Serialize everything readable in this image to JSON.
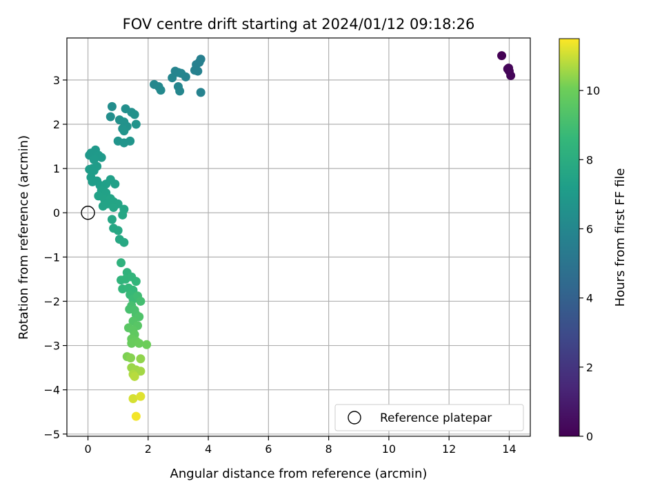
{
  "chart_data": {
    "type": "scatter",
    "title": "FOV centre drift starting at 2024/01/12 09:18:26",
    "xlabel": "Angular distance from reference (arcmin)",
    "ylabel": "Rotation from reference (arcmin)",
    "xlim": [
      -0.7,
      14.7
    ],
    "ylim": [
      -5.05,
      3.95
    ],
    "xticks": [
      0,
      2,
      4,
      6,
      8,
      10,
      12,
      14
    ],
    "yticks": [
      -5,
      -4,
      -3,
      -2,
      -1,
      0,
      1,
      2,
      3
    ],
    "grid": true,
    "legend": {
      "position": "lower right",
      "entries": [
        "Reference platepar"
      ]
    },
    "reference_point": {
      "x": 0,
      "y": 0
    },
    "colorbar": {
      "label": "Hours from first FF file",
      "colormap": "viridis",
      "range": [
        0,
        11.5
      ],
      "ticks": [
        0,
        2,
        4,
        6,
        8,
        10
      ]
    },
    "series": [
      {
        "points": [
          {
            "x": 13.75,
            "y": 3.55,
            "c": 0.0
          },
          {
            "x": 13.95,
            "y": 3.25,
            "c": 0.05
          },
          {
            "x": 14.0,
            "y": 3.2,
            "c": 0.1
          },
          {
            "x": 14.05,
            "y": 3.1,
            "c": 0.15
          },
          {
            "x": 13.98,
            "y": 3.27,
            "c": 0.2
          },
          {
            "x": 3.75,
            "y": 3.47,
            "c": 5.6
          },
          {
            "x": 3.7,
            "y": 3.4,
            "c": 5.62
          },
          {
            "x": 3.6,
            "y": 3.35,
            "c": 5.65
          },
          {
            "x": 3.65,
            "y": 3.2,
            "c": 5.7
          },
          {
            "x": 3.55,
            "y": 3.22,
            "c": 5.72
          },
          {
            "x": 3.75,
            "y": 2.72,
            "c": 5.75
          },
          {
            "x": 3.25,
            "y": 3.07,
            "c": 5.8
          },
          {
            "x": 3.0,
            "y": 3.17,
            "c": 5.82
          },
          {
            "x": 2.9,
            "y": 3.2,
            "c": 5.85
          },
          {
            "x": 3.1,
            "y": 3.15,
            "c": 5.88
          },
          {
            "x": 2.8,
            "y": 3.05,
            "c": 5.9
          },
          {
            "x": 3.0,
            "y": 2.85,
            "c": 5.92
          },
          {
            "x": 3.05,
            "y": 2.75,
            "c": 5.95
          },
          {
            "x": 2.2,
            "y": 2.9,
            "c": 6.0
          },
          {
            "x": 2.35,
            "y": 2.85,
            "c": 6.05
          },
          {
            "x": 2.42,
            "y": 2.77,
            "c": 6.1
          },
          {
            "x": 0.8,
            "y": 2.4,
            "c": 6.3
          },
          {
            "x": 0.75,
            "y": 2.17,
            "c": 6.35
          },
          {
            "x": 1.25,
            "y": 2.35,
            "c": 6.4
          },
          {
            "x": 1.45,
            "y": 2.27,
            "c": 6.45
          },
          {
            "x": 1.55,
            "y": 2.22,
            "c": 6.5
          },
          {
            "x": 1.05,
            "y": 2.1,
            "c": 6.52
          },
          {
            "x": 1.2,
            "y": 2.05,
            "c": 6.55
          },
          {
            "x": 1.3,
            "y": 1.95,
            "c": 6.58
          },
          {
            "x": 1.15,
            "y": 1.9,
            "c": 6.6
          },
          {
            "x": 1.6,
            "y": 2.0,
            "c": 6.62
          },
          {
            "x": 1.2,
            "y": 1.85,
            "c": 6.65
          },
          {
            "x": 1.0,
            "y": 1.62,
            "c": 6.68
          },
          {
            "x": 1.2,
            "y": 1.58,
            "c": 6.7
          },
          {
            "x": 1.4,
            "y": 1.62,
            "c": 6.72
          },
          {
            "x": 0.05,
            "y": 1.3,
            "c": 6.9
          },
          {
            "x": 0.1,
            "y": 1.35,
            "c": 6.92
          },
          {
            "x": 0.25,
            "y": 1.42,
            "c": 6.95
          },
          {
            "x": 0.35,
            "y": 1.3,
            "c": 6.98
          },
          {
            "x": 0.45,
            "y": 1.25,
            "c": 7.0
          },
          {
            "x": 0.2,
            "y": 1.2,
            "c": 7.02
          },
          {
            "x": 0.15,
            "y": 1.0,
            "c": 7.05
          },
          {
            "x": 0.3,
            "y": 1.05,
            "c": 7.08
          },
          {
            "x": 0.05,
            "y": 0.98,
            "c": 7.1
          },
          {
            "x": 0.2,
            "y": 0.95,
            "c": 7.12
          },
          {
            "x": 0.1,
            "y": 0.8,
            "c": 7.15
          },
          {
            "x": 0.15,
            "y": 0.7,
            "c": 7.18
          },
          {
            "x": 0.3,
            "y": 0.72,
            "c": 7.2
          },
          {
            "x": 0.4,
            "y": 0.62,
            "c": 7.22
          },
          {
            "x": 0.5,
            "y": 0.55,
            "c": 7.25
          },
          {
            "x": 0.6,
            "y": 0.65,
            "c": 7.28
          },
          {
            "x": 0.75,
            "y": 0.75,
            "c": 7.3
          },
          {
            "x": 0.9,
            "y": 0.65,
            "c": 7.32
          },
          {
            "x": 0.45,
            "y": 0.5,
            "c": 7.35
          },
          {
            "x": 0.6,
            "y": 0.45,
            "c": 7.38
          },
          {
            "x": 0.35,
            "y": 0.38,
            "c": 7.4
          },
          {
            "x": 0.55,
            "y": 0.3,
            "c": 7.42
          },
          {
            "x": 0.75,
            "y": 0.32,
            "c": 7.45
          },
          {
            "x": 0.65,
            "y": 0.2,
            "c": 7.48
          },
          {
            "x": 0.5,
            "y": 0.15,
            "c": 7.5
          },
          {
            "x": 0.85,
            "y": 0.25,
            "c": 7.52
          },
          {
            "x": 1.0,
            "y": 0.2,
            "c": 7.55
          },
          {
            "x": 0.85,
            "y": 0.12,
            "c": 7.58
          },
          {
            "x": 1.2,
            "y": 0.08,
            "c": 7.6
          },
          {
            "x": 1.15,
            "y": -0.05,
            "c": 7.62
          },
          {
            "x": 0.8,
            "y": -0.15,
            "c": 7.65
          },
          {
            "x": 0.85,
            "y": -0.35,
            "c": 7.68
          },
          {
            "x": 1.0,
            "y": -0.4,
            "c": 7.7
          },
          {
            "x": 1.05,
            "y": -0.6,
            "c": 7.72
          },
          {
            "x": 1.2,
            "y": -0.67,
            "c": 7.75
          },
          {
            "x": 1.1,
            "y": -1.13,
            "c": 8.3
          },
          {
            "x": 1.3,
            "y": -1.35,
            "c": 8.35
          },
          {
            "x": 1.1,
            "y": -1.52,
            "c": 8.4
          },
          {
            "x": 1.25,
            "y": -1.5,
            "c": 8.45
          },
          {
            "x": 1.45,
            "y": -1.45,
            "c": 8.48
          },
          {
            "x": 1.6,
            "y": -1.55,
            "c": 8.5
          },
          {
            "x": 1.15,
            "y": -1.72,
            "c": 8.52
          },
          {
            "x": 1.35,
            "y": -1.7,
            "c": 8.55
          },
          {
            "x": 1.5,
            "y": -1.75,
            "c": 8.6
          },
          {
            "x": 1.4,
            "y": -1.85,
            "c": 8.7
          },
          {
            "x": 1.5,
            "y": -1.95,
            "c": 8.8
          },
          {
            "x": 1.65,
            "y": -1.88,
            "c": 8.9
          },
          {
            "x": 1.75,
            "y": -2.0,
            "c": 9.0
          },
          {
            "x": 1.45,
            "y": -2.1,
            "c": 9.05
          },
          {
            "x": 1.38,
            "y": -2.18,
            "c": 9.1
          },
          {
            "x": 1.55,
            "y": -2.2,
            "c": 9.15
          },
          {
            "x": 1.6,
            "y": -2.3,
            "c": 9.2
          },
          {
            "x": 1.7,
            "y": -2.35,
            "c": 9.3
          },
          {
            "x": 1.5,
            "y": -2.45,
            "c": 9.4
          },
          {
            "x": 1.65,
            "y": -2.55,
            "c": 9.5
          },
          {
            "x": 1.35,
            "y": -2.6,
            "c": 9.55
          },
          {
            "x": 1.5,
            "y": -2.65,
            "c": 9.6
          },
          {
            "x": 1.55,
            "y": -2.75,
            "c": 9.7
          },
          {
            "x": 1.45,
            "y": -2.85,
            "c": 9.8
          },
          {
            "x": 1.6,
            "y": -2.9,
            "c": 9.85
          },
          {
            "x": 1.45,
            "y": -2.95,
            "c": 9.9
          },
          {
            "x": 1.7,
            "y": -2.95,
            "c": 9.95
          },
          {
            "x": 1.95,
            "y": -2.98,
            "c": 10.0
          },
          {
            "x": 1.3,
            "y": -3.25,
            "c": 10.2
          },
          {
            "x": 1.42,
            "y": -3.28,
            "c": 10.3
          },
          {
            "x": 1.75,
            "y": -3.3,
            "c": 10.4
          },
          {
            "x": 1.45,
            "y": -3.5,
            "c": 10.5
          },
          {
            "x": 1.6,
            "y": -3.55,
            "c": 10.55
          },
          {
            "x": 1.75,
            "y": -3.58,
            "c": 10.6
          },
          {
            "x": 1.5,
            "y": -3.65,
            "c": 10.7
          },
          {
            "x": 1.55,
            "y": -3.7,
            "c": 10.8
          },
          {
            "x": 1.5,
            "y": -4.2,
            "c": 11.1
          },
          {
            "x": 1.75,
            "y": -4.15,
            "c": 11.2
          },
          {
            "x": 1.6,
            "y": -4.6,
            "c": 11.4
          }
        ]
      }
    ]
  }
}
